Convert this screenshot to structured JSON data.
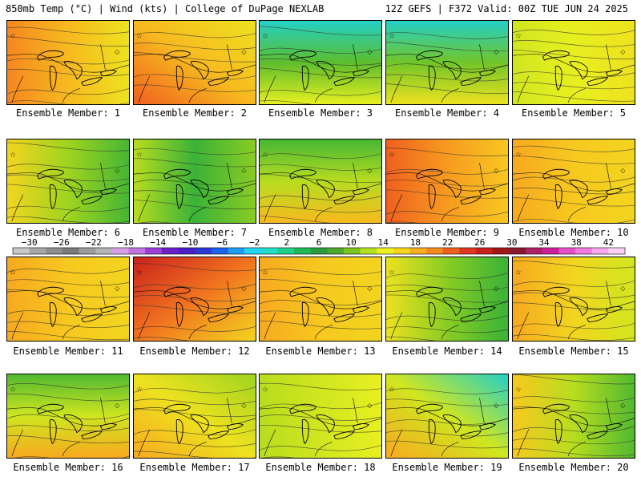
{
  "header": {
    "left": "850mb Temp (°C) | Wind (kts) | College of DuPage NEXLAB",
    "right": "12Z GEFS | F372 Valid: 00Z TUE JUN 24 2025"
  },
  "member_label_prefix": "Ensemble Member: ",
  "members": [
    {
      "id": 1,
      "label": "Ensemble Member: 1",
      "base_temp": 18,
      "gradient": "warm-west"
    },
    {
      "id": 2,
      "label": "Ensemble Member: 2",
      "base_temp": 18,
      "gradient": "warm-southwest"
    },
    {
      "id": 3,
      "label": "Ensemble Member: 3",
      "base_temp": 8,
      "gradient": "cool-north"
    },
    {
      "id": 4,
      "label": "Ensemble Member: 4",
      "base_temp": 9,
      "gradient": "cool-north"
    },
    {
      "id": 5,
      "label": "Ensemble Member: 5",
      "base_temp": 14,
      "gradient": "mild"
    },
    {
      "id": 6,
      "label": "Ensemble Member: 6",
      "base_temp": 11,
      "gradient": "cool-east"
    },
    {
      "id": 7,
      "label": "Ensemble Member: 7",
      "base_temp": 8,
      "gradient": "cool-center"
    },
    {
      "id": 8,
      "label": "Ensemble Member: 8",
      "base_temp": 12,
      "gradient": "cool-north"
    },
    {
      "id": 9,
      "label": "Ensemble Member: 9",
      "base_temp": 20,
      "gradient": "warm-west"
    },
    {
      "id": 10,
      "label": "Ensemble Member: 10",
      "base_temp": 17,
      "gradient": "warm"
    },
    {
      "id": 11,
      "label": "Ensemble Member: 11",
      "base_temp": 17,
      "gradient": "warm"
    },
    {
      "id": 12,
      "label": "Ensemble Member: 12",
      "base_temp": 22,
      "gradient": "hot-northwest"
    },
    {
      "id": 13,
      "label": "Ensemble Member: 13",
      "base_temp": 17,
      "gradient": "warm"
    },
    {
      "id": 14,
      "label": "Ensemble Member: 14",
      "base_temp": 10,
      "gradient": "cool-east"
    },
    {
      "id": 15,
      "label": "Ensemble Member: 15",
      "base_temp": 16,
      "gradient": "warm-west"
    },
    {
      "id": 16,
      "label": "Ensemble Member: 16",
      "base_temp": 13,
      "gradient": "cool-north"
    },
    {
      "id": 17,
      "label": "Ensemble Member: 17",
      "base_temp": 15,
      "gradient": "warm-south"
    },
    {
      "id": 18,
      "label": "Ensemble Member: 18",
      "base_temp": 13,
      "gradient": "mild"
    },
    {
      "id": 19,
      "label": "Ensemble Member: 19",
      "base_temp": 13,
      "gradient": "cool-northeast"
    },
    {
      "id": 20,
      "label": "Ensemble Member: 20",
      "base_temp": 12,
      "gradient": "cool-east"
    }
  ],
  "colorbar": {
    "tick_labels": [
      "−30",
      "−26",
      "−22",
      "−18",
      "−14",
      "−10",
      "−6",
      "−2",
      "2",
      "6",
      "10",
      "14",
      "18",
      "22",
      "26",
      "30",
      "34",
      "38",
      "42"
    ],
    "colors": [
      "#c9c9c9",
      "#a7a7a7",
      "#8e8e8e",
      "#7a7a7a",
      "#9c9c9c",
      "#b5b5b5",
      "#d9a0e8",
      "#c074e0",
      "#9b3fd6",
      "#6f1fc8",
      "#4a1fc8",
      "#2a3ad8",
      "#1f62f0",
      "#1f9cf5",
      "#23d6f0",
      "#1fe0c6",
      "#1fd08a",
      "#22b85a",
      "#2a9c3c",
      "#4aa82c",
      "#7cc41f",
      "#b5e01f",
      "#eef01f",
      "#f7d21f",
      "#f7b01f",
      "#f78a1f",
      "#f0601f",
      "#e0361f",
      "#c81f1f",
      "#a01818",
      "#8a1830",
      "#b01f6a",
      "#d01f9c",
      "#e84ec8",
      "#f07ae0",
      "#f7a8ee",
      "#fbd0f5"
    ]
  }
}
